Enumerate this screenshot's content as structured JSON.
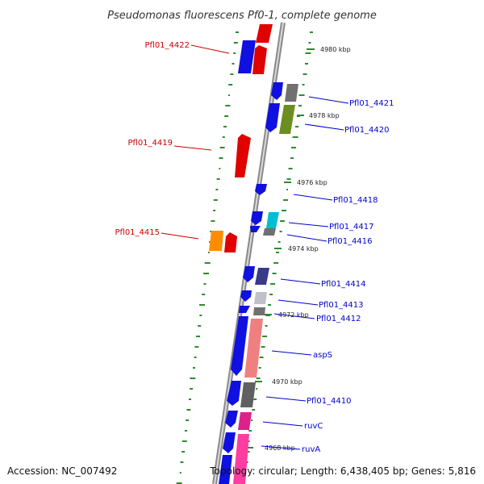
{
  "title": "Pseudomonas fluorescens Pf0-1, complete genome",
  "footer": {
    "accession": "Accession: NC_007492",
    "summary": "Topology: circular; Length: 6,438,405 bp; Genes: 5,816"
  },
  "colors": {
    "forward_label": "#cc0000",
    "reverse_label": "#0000cc",
    "backbone": "#999999",
    "gc_ticks": "#2e8b2e"
  },
  "scale_labels": [
    "4980 kbp",
    "4978 kbp",
    "4976 kbp",
    "4974 kbp",
    "4972 kbp",
    "4970 kbp",
    "4968 kbp"
  ],
  "gene_labels": [
    {
      "text": "Pfl01_4422",
      "strand": "forward"
    },
    {
      "text": "Pfl01_4421",
      "strand": "reverse"
    },
    {
      "text": "Pfl01_4420",
      "strand": "reverse"
    },
    {
      "text": "Pfl01_4419",
      "strand": "forward"
    },
    {
      "text": "Pfl01_4418",
      "strand": "reverse"
    },
    {
      "text": "Pfl01_4417",
      "strand": "reverse"
    },
    {
      "text": "Pfl01_4416",
      "strand": "reverse"
    },
    {
      "text": "Pfl01_4415",
      "strand": "forward"
    },
    {
      "text": "Pfl01_4414",
      "strand": "reverse"
    },
    {
      "text": "Pfl01_4413",
      "strand": "reverse"
    },
    {
      "text": "Pfl01_4412",
      "strand": "reverse"
    },
    {
      "text": "aspS",
      "strand": "reverse"
    },
    {
      "text": "Pfl01_4410",
      "strand": "reverse"
    },
    {
      "text": "ruvC",
      "strand": "reverse"
    },
    {
      "text": "ruvA",
      "strand": "reverse"
    }
  ]
}
